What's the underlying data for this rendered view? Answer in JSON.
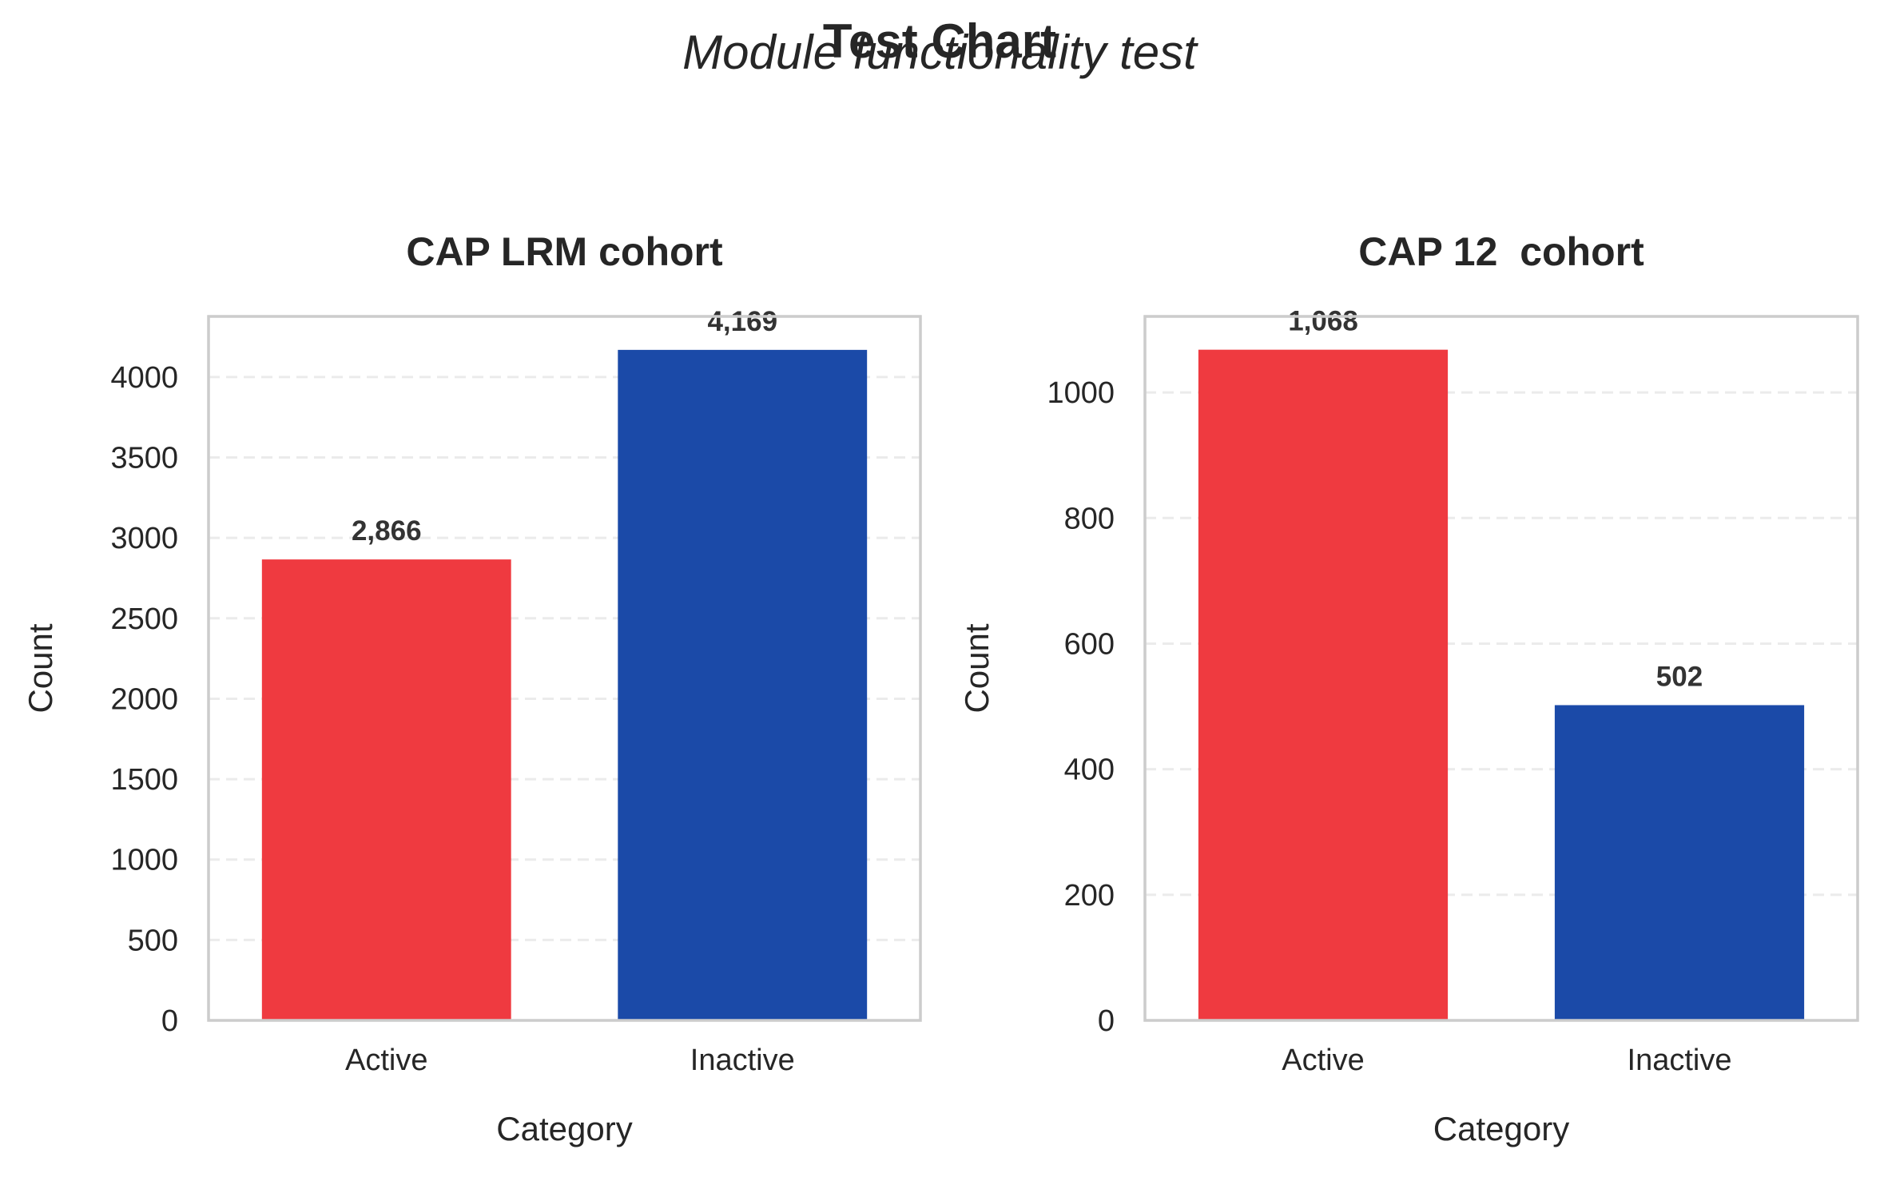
{
  "figure": {
    "title": "Test Chart",
    "subtitle": "Module functionality test"
  },
  "colors": {
    "active": "#ef3a40",
    "inactive": "#1b4aa8"
  },
  "chart_data": [
    {
      "type": "bar",
      "title": "CAP LRM cohort",
      "xlabel": "Category",
      "ylabel": "Count",
      "categories": [
        "Active",
        "Inactive"
      ],
      "values": [
        2866,
        4169
      ],
      "value_labels": [
        "2,866",
        "4,169"
      ],
      "ylim": [
        0,
        4377
      ],
      "yticks": [
        0,
        500,
        1000,
        1500,
        2000,
        2500,
        3000,
        3500,
        4000
      ],
      "grid": true,
      "legend": "none"
    },
    {
      "type": "bar",
      "title": "CAP 12  cohort",
      "xlabel": "Category",
      "ylabel": "Count",
      "categories": [
        "Active",
        "Inactive"
      ],
      "values": [
        1068,
        502
      ],
      "value_labels": [
        "1,068",
        "502"
      ],
      "ylim": [
        0,
        1121
      ],
      "yticks": [
        0,
        200,
        400,
        600,
        800,
        1000
      ],
      "grid": true,
      "legend": "none"
    }
  ]
}
